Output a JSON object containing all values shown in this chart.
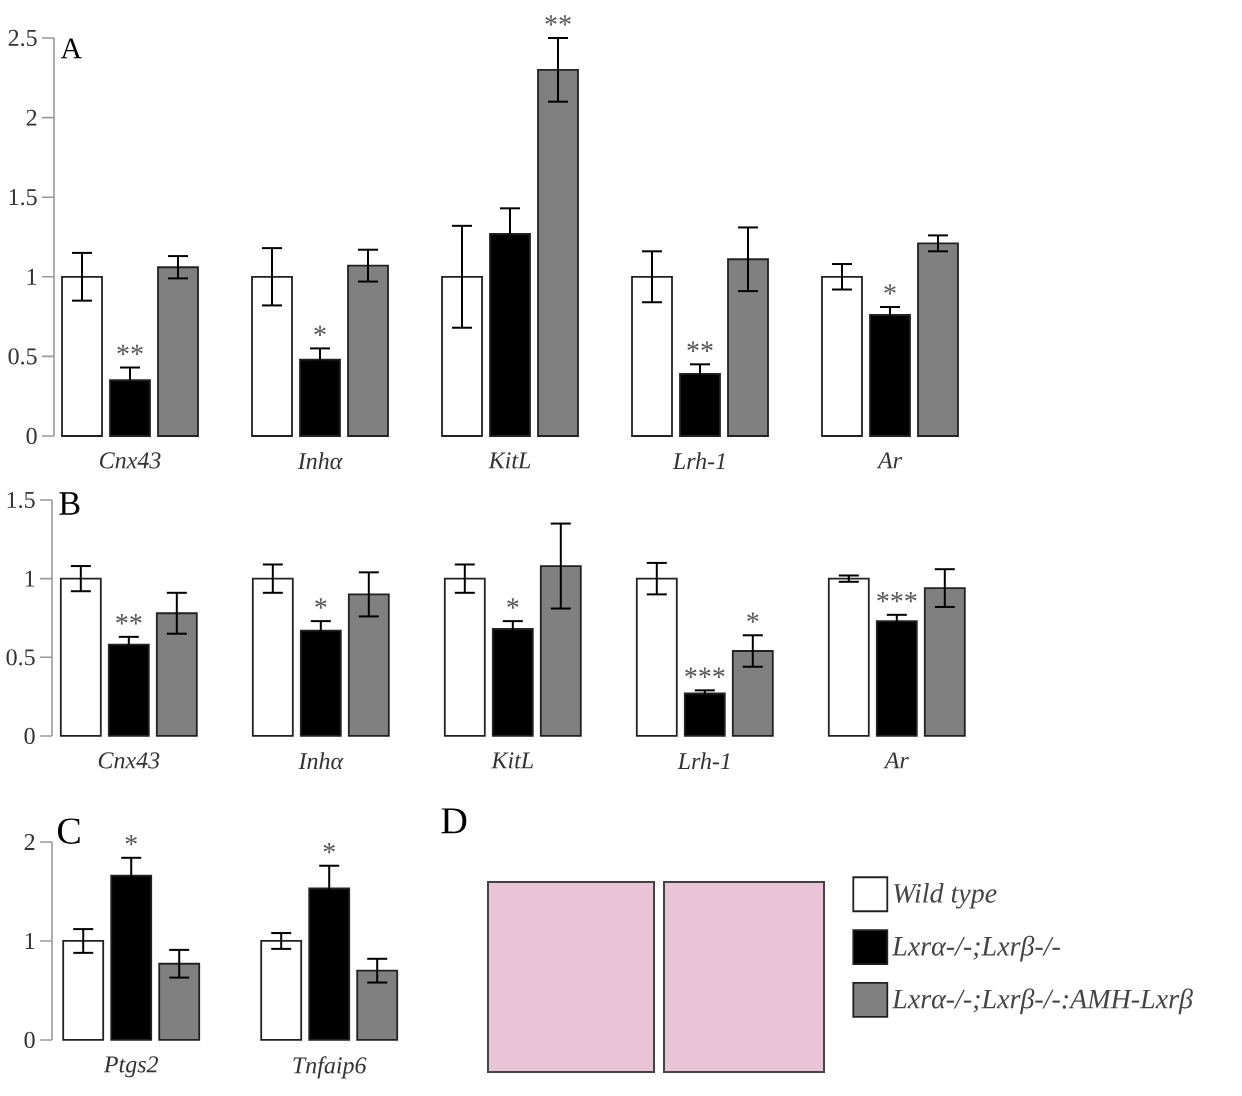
{
  "chart_data": [
    {
      "type": "bar",
      "title": "A",
      "categories": [
        "Cnx43",
        "Inhα",
        "KitL",
        "Lrh-1",
        "Ar"
      ],
      "series": [
        {
          "color": "#ffffff",
          "values": [
            1,
            1,
            1,
            1,
            1
          ],
          "errors": [
            0.15,
            0.18,
            0.32,
            0.16,
            0.08
          ]
        },
        {
          "color": "#000000",
          "values": [
            0.35,
            0.48,
            1.27,
            0.39,
            0.76
          ],
          "errors": [
            0.08,
            0.07,
            0.16,
            0.06,
            0.05
          ]
        },
        {
          "color": "#808080",
          "values": [
            1.06,
            1.07,
            2.3,
            1.11,
            1.21
          ],
          "errors": [
            0.07,
            0.1,
            0.2,
            0.2,
            0.05
          ]
        }
      ],
      "ylim": [
        0,
        2.5
      ],
      "yticks": [
        0,
        0.5,
        1,
        1.5,
        2,
        2.5
      ],
      "annotations": [
        {
          "text": "**",
          "x": "Cnx43",
          "y": 0.35
        },
        {
          "text": "*",
          "x": "Inhα",
          "y": 0.48
        },
        {
          "text": "**",
          "y": 2.3
        },
        {
          "text": "**",
          "x": "Lrh-1",
          "y": 0.39
        },
        {
          "text": "*",
          "x": "Ar",
          "y": 0.76
        }
      ]
    },
    {
      "type": "bar",
      "title": "B",
      "categories": [
        "Cnx43",
        "Inhα",
        "KitL",
        "Lrh-1",
        "Ar"
      ],
      "series": [
        {
          "color": "#ffffff",
          "values": [
            1,
            1,
            1,
            1,
            1
          ],
          "errors": [
            0.08,
            0.09,
            0.09,
            0.1,
            0.02
          ]
        },
        {
          "color": "#000000",
          "values": [
            0.58,
            0.67,
            0.68,
            0.27,
            0.73
          ],
          "errors": [
            0.05,
            0.06,
            0.05,
            0.02,
            0.04
          ]
        },
        {
          "color": "#808080",
          "values": [
            0.78,
            0.9,
            1.08,
            0.54,
            0.94
          ],
          "errors": [
            0.13,
            0.14,
            0.27,
            0.1,
            0.12
          ]
        }
      ],
      "ylim": [
        0,
        1.5
      ],
      "yticks": [
        0,
        0.5,
        1,
        1.5
      ],
      "annotations": [
        {
          "text": "**",
          "x": "Cnx43",
          "y": 0.58
        },
        {
          "text": "*",
          "x": "Inhα",
          "y": 0.67
        },
        {
          "text": "*",
          "x": "KitL",
          "y": 0.68
        },
        {
          "text": "***",
          "x": "Lrh-1",
          "y": 0.27
        },
        {
          "text": "*",
          "y": 0.54
        },
        {
          "text": "***",
          "x": "Ar",
          "y": 0.73
        }
      ]
    },
    {
      "type": "bar",
      "title": "C",
      "categories": [
        "Ptgs2",
        "Tnfaip6"
      ],
      "series": [
        {
          "name": "Wild type",
          "color": "#ffffff",
          "values": [
            1,
            1
          ],
          "errors": [
            0.12,
            0.08
          ]
        },
        {
          "name": "Lxrα-/-;Lxrβ-/-",
          "color": "#000000",
          "values": [
            1.66,
            1.53
          ],
          "errors": [
            0.18,
            0.23
          ]
        },
        {
          "name": "Lxrα-/-;Lxrβ-/-:AMH-Lxrβ",
          "color": "#808080",
          "values": [
            0.77,
            0.7
          ],
          "errors": [
            0.14,
            0.12
          ]
        }
      ],
      "ylim": [
        0,
        2
      ],
      "yticks": [
        0,
        1,
        2
      ],
      "legend": "right",
      "annotations": [
        {
          "text": "*",
          "x": "Ptgs2",
          "y": 1.66
        },
        {
          "text": "*",
          "x": "Tnfaip6",
          "y": 1.53
        }
      ]
    },
    {
      "type": "other",
      "title": "D"
    }
  ]
}
